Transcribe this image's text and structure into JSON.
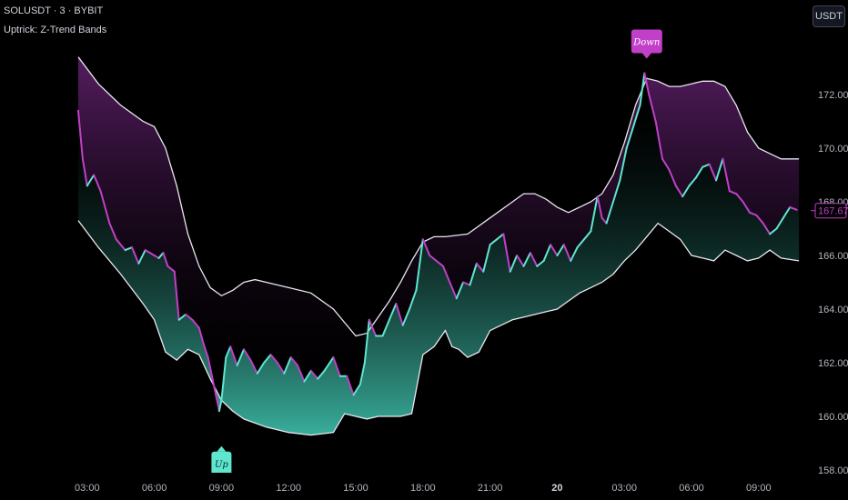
{
  "header": {
    "symbol_line": "SOLUSDT · 3 · BYBIT",
    "indicator_line": "Uptrick: Z-Trend Bands"
  },
  "currency_button": "USDT",
  "colors": {
    "background": "#000000",
    "bull": "#5ee6cf",
    "bear": "#c23fc8",
    "band_line": "#e8e8ee",
    "upper_fill": "#5a1e66",
    "lower_fill": "#3fc2ad",
    "label_down": "#c23fc8",
    "label_up": "#5ee6cf"
  },
  "chart_data": {
    "type": "line",
    "title": "",
    "xlabel": "",
    "ylabel": "",
    "ylim": [
      157.5,
      173.2
    ],
    "y_ticks": [
      "158.00",
      "160.00",
      "162.00",
      "164.00",
      "166.00",
      "168.00",
      "170.00",
      "172.00"
    ],
    "x_ticks": [
      {
        "label": "03:00",
        "h": 3,
        "bold": false
      },
      {
        "label": "06:00",
        "h": 6,
        "bold": false
      },
      {
        "label": "09:00",
        "h": 9,
        "bold": false
      },
      {
        "label": "12:00",
        "h": 12,
        "bold": false
      },
      {
        "label": "15:00",
        "h": 15,
        "bold": false
      },
      {
        "label": "18:00",
        "h": 18,
        "bold": false
      },
      {
        "label": "21:00",
        "h": 21,
        "bold": false
      },
      {
        "label": "20",
        "h": 24,
        "bold": true
      },
      {
        "label": "03:00",
        "h": 27,
        "bold": false
      },
      {
        "label": "06:00",
        "h": 30,
        "bold": false
      },
      {
        "label": "09:00",
        "h": 33,
        "bold": false
      }
    ],
    "last_price": "167.67",
    "last_price_value": 167.67,
    "series": [
      {
        "name": "Price",
        "points": [
          [
            2.6,
            171.4
          ],
          [
            2.8,
            169.6
          ],
          [
            3.0,
            168.6
          ],
          [
            3.3,
            169.0
          ],
          [
            3.6,
            168.4
          ],
          [
            4.0,
            167.2
          ],
          [
            4.3,
            166.6
          ],
          [
            4.7,
            166.2
          ],
          [
            5.0,
            166.3
          ],
          [
            5.3,
            165.7
          ],
          [
            5.6,
            166.2
          ],
          [
            6.0,
            166.0
          ],
          [
            6.2,
            165.9
          ],
          [
            6.4,
            166.1
          ],
          [
            6.6,
            165.6
          ],
          [
            6.9,
            165.4
          ],
          [
            7.1,
            163.6
          ],
          [
            7.4,
            163.8
          ],
          [
            7.7,
            163.6
          ],
          [
            8.0,
            163.3
          ],
          [
            8.2,
            162.7
          ],
          [
            8.4,
            162.2
          ],
          [
            8.7,
            161.0
          ],
          [
            8.9,
            160.2
          ],
          [
            9.0,
            160.6
          ],
          [
            9.2,
            162.2
          ],
          [
            9.4,
            162.6
          ],
          [
            9.7,
            161.9
          ],
          [
            10.0,
            162.5
          ],
          [
            10.3,
            162.1
          ],
          [
            10.6,
            161.6
          ],
          [
            10.9,
            162.0
          ],
          [
            11.2,
            162.3
          ],
          [
            11.5,
            162.0
          ],
          [
            11.8,
            161.6
          ],
          [
            12.1,
            162.2
          ],
          [
            12.4,
            161.9
          ],
          [
            12.7,
            161.3
          ],
          [
            13.0,
            161.7
          ],
          [
            13.3,
            161.4
          ],
          [
            13.6,
            161.7
          ],
          [
            14.0,
            162.2
          ],
          [
            14.3,
            161.5
          ],
          [
            14.6,
            161.5
          ],
          [
            14.9,
            160.8
          ],
          [
            15.2,
            161.2
          ],
          [
            15.4,
            162.0
          ],
          [
            15.6,
            163.6
          ],
          [
            15.9,
            163.0
          ],
          [
            16.2,
            163.0
          ],
          [
            16.5,
            163.6
          ],
          [
            16.8,
            164.2
          ],
          [
            17.1,
            163.4
          ],
          [
            17.4,
            164.0
          ],
          [
            17.7,
            164.7
          ],
          [
            18.0,
            166.6
          ],
          [
            18.3,
            166.0
          ],
          [
            18.6,
            165.8
          ],
          [
            18.9,
            165.6
          ],
          [
            19.2,
            165.0
          ],
          [
            19.5,
            164.4
          ],
          [
            19.8,
            165.0
          ],
          [
            20.1,
            164.9
          ],
          [
            20.4,
            165.7
          ],
          [
            20.7,
            165.4
          ],
          [
            21.0,
            166.4
          ],
          [
            21.3,
            166.6
          ],
          [
            21.6,
            166.8
          ],
          [
            21.9,
            165.4
          ],
          [
            22.2,
            166.0
          ],
          [
            22.5,
            165.6
          ],
          [
            22.8,
            166.1
          ],
          [
            23.1,
            165.6
          ],
          [
            23.4,
            165.8
          ],
          [
            23.7,
            166.4
          ],
          [
            24.0,
            166.0
          ],
          [
            24.3,
            166.4
          ],
          [
            24.6,
            165.8
          ],
          [
            24.9,
            166.3
          ],
          [
            25.2,
            166.6
          ],
          [
            25.5,
            166.9
          ],
          [
            25.8,
            168.2
          ],
          [
            26.0,
            167.4
          ],
          [
            26.2,
            167.2
          ],
          [
            26.5,
            168.0
          ],
          [
            26.8,
            168.8
          ],
          [
            27.1,
            170.0
          ],
          [
            27.4,
            170.8
          ],
          [
            27.7,
            171.6
          ],
          [
            27.9,
            172.8
          ],
          [
            28.1,
            172.0
          ],
          [
            28.4,
            171.0
          ],
          [
            28.7,
            169.6
          ],
          [
            29.0,
            169.2
          ],
          [
            29.3,
            168.6
          ],
          [
            29.6,
            168.2
          ],
          [
            29.9,
            168.6
          ],
          [
            30.2,
            168.9
          ],
          [
            30.5,
            169.3
          ],
          [
            30.8,
            169.4
          ],
          [
            31.1,
            168.8
          ],
          [
            31.4,
            169.6
          ],
          [
            31.7,
            168.4
          ],
          [
            32.0,
            168.3
          ],
          [
            32.3,
            168.0
          ],
          [
            32.6,
            167.6
          ],
          [
            32.9,
            167.5
          ],
          [
            33.2,
            167.2
          ],
          [
            33.5,
            166.8
          ],
          [
            33.8,
            167.0
          ],
          [
            34.1,
            167.4
          ],
          [
            34.4,
            167.8
          ],
          [
            34.7,
            167.7
          ]
        ]
      },
      {
        "name": "Upper band",
        "points": [
          [
            2.6,
            173.4
          ],
          [
            3.5,
            172.4
          ],
          [
            4.5,
            171.6
          ],
          [
            5.5,
            171.0
          ],
          [
            6.0,
            170.8
          ],
          [
            6.5,
            170.0
          ],
          [
            7.0,
            168.6
          ],
          [
            7.5,
            166.8
          ],
          [
            8.0,
            165.6
          ],
          [
            8.5,
            164.8
          ],
          [
            9.0,
            164.5
          ],
          [
            9.5,
            164.7
          ],
          [
            10.0,
            165.0
          ],
          [
            10.5,
            165.1
          ],
          [
            11.0,
            165.0
          ],
          [
            12.0,
            164.8
          ],
          [
            13.0,
            164.6
          ],
          [
            14.0,
            164.0
          ],
          [
            15.0,
            163.0
          ],
          [
            15.5,
            163.1
          ],
          [
            16.0,
            163.7
          ],
          [
            16.5,
            164.3
          ],
          [
            17.0,
            165.0
          ],
          [
            17.5,
            165.8
          ],
          [
            18.0,
            166.5
          ],
          [
            18.5,
            166.7
          ],
          [
            19.0,
            166.7
          ],
          [
            20.0,
            166.8
          ],
          [
            21.0,
            167.4
          ],
          [
            22.0,
            168.0
          ],
          [
            22.5,
            168.3
          ],
          [
            23.0,
            168.3
          ],
          [
            23.5,
            168.1
          ],
          [
            24.0,
            167.8
          ],
          [
            24.5,
            167.6
          ],
          [
            25.0,
            167.8
          ],
          [
            25.5,
            168.0
          ],
          [
            26.0,
            168.3
          ],
          [
            26.5,
            169.0
          ],
          [
            27.0,
            170.2
          ],
          [
            27.5,
            171.6
          ],
          [
            28.0,
            172.6
          ],
          [
            28.5,
            172.5
          ],
          [
            29.0,
            172.3
          ],
          [
            29.5,
            172.3
          ],
          [
            30.0,
            172.4
          ],
          [
            30.5,
            172.5
          ],
          [
            31.0,
            172.5
          ],
          [
            31.5,
            172.3
          ],
          [
            32.0,
            171.6
          ],
          [
            32.5,
            170.6
          ],
          [
            33.0,
            170.0
          ],
          [
            33.5,
            169.8
          ],
          [
            34.0,
            169.6
          ],
          [
            34.5,
            169.6
          ],
          [
            34.8,
            169.6
          ]
        ]
      },
      {
        "name": "Lower band",
        "points": [
          [
            2.6,
            167.3
          ],
          [
            3.5,
            166.3
          ],
          [
            4.5,
            165.3
          ],
          [
            5.5,
            164.2
          ],
          [
            6.0,
            163.6
          ],
          [
            6.5,
            162.4
          ],
          [
            7.0,
            162.1
          ],
          [
            7.5,
            162.5
          ],
          [
            8.0,
            162.3
          ],
          [
            8.5,
            161.4
          ],
          [
            9.0,
            160.6
          ],
          [
            9.5,
            160.2
          ],
          [
            10.0,
            159.9
          ],
          [
            11.0,
            159.6
          ],
          [
            12.0,
            159.4
          ],
          [
            13.0,
            159.3
          ],
          [
            14.0,
            159.4
          ],
          [
            14.5,
            160.1
          ],
          [
            15.0,
            160.0
          ],
          [
            15.5,
            159.9
          ],
          [
            16.0,
            160.0
          ],
          [
            17.0,
            160.0
          ],
          [
            17.5,
            160.1
          ],
          [
            18.0,
            162.3
          ],
          [
            18.5,
            162.6
          ],
          [
            19.0,
            163.2
          ],
          [
            19.3,
            162.6
          ],
          [
            19.6,
            162.5
          ],
          [
            20.0,
            162.2
          ],
          [
            20.5,
            162.4
          ],
          [
            21.0,
            163.2
          ],
          [
            21.5,
            163.4
          ],
          [
            22.0,
            163.6
          ],
          [
            22.5,
            163.7
          ],
          [
            23.0,
            163.8
          ],
          [
            23.5,
            163.9
          ],
          [
            24.0,
            164.0
          ],
          [
            24.5,
            164.3
          ],
          [
            25.0,
            164.6
          ],
          [
            25.5,
            164.8
          ],
          [
            26.0,
            165.0
          ],
          [
            26.5,
            165.3
          ],
          [
            27.0,
            165.8
          ],
          [
            27.5,
            166.2
          ],
          [
            28.0,
            166.7
          ],
          [
            28.5,
            167.2
          ],
          [
            29.0,
            166.9
          ],
          [
            29.5,
            166.6
          ],
          [
            30.0,
            166.0
          ],
          [
            30.5,
            165.9
          ],
          [
            31.0,
            165.8
          ],
          [
            31.5,
            166.2
          ],
          [
            32.0,
            166.0
          ],
          [
            32.5,
            165.8
          ],
          [
            33.0,
            165.9
          ],
          [
            33.5,
            166.2
          ],
          [
            34.0,
            165.9
          ],
          [
            34.8,
            165.8
          ]
        ]
      }
    ],
    "signals": [
      {
        "label": "Down",
        "x": 28.0,
        "y": 173.0,
        "position": "above"
      },
      {
        "label": "Up",
        "x": 9.0,
        "y": 159.5,
        "position": "below"
      }
    ],
    "grid": false,
    "legend": "none"
  }
}
